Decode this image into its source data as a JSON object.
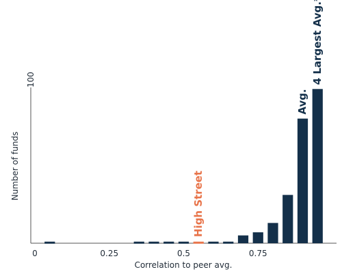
{
  "chart_data": {
    "type": "histogram",
    "x_label": "Correlation to peer avg.",
    "y_label": "Number of funds",
    "bins": [
      0.025,
      0.075,
      0.125,
      0.175,
      0.225,
      0.275,
      0.325,
      0.375,
      0.425,
      0.475,
      0.525,
      0.575,
      0.625,
      0.675,
      0.725,
      0.775,
      0.825,
      0.875,
      0.925,
      0.975
    ],
    "values": [
      1,
      0,
      0,
      0,
      0,
      0,
      1,
      1,
      1,
      1,
      1,
      1,
      1,
      5,
      7,
      13,
      31,
      80,
      99
    ],
    "colors": [
      "#14304a",
      "#14304a",
      "#14304a",
      "#14304a",
      "#14304a",
      "#14304a",
      "#14304a",
      "#14304a",
      "#14304a",
      "#14304a",
      "#e8744a",
      "#14304a",
      "#14304a",
      "#14304a",
      "#14304a",
      "#14304a",
      "#14304a",
      "#14304a",
      "#14304a"
    ],
    "xlim": [
      0,
      1
    ],
    "ylim": [
      0,
      100
    ],
    "xticks": [
      0,
      0.25,
      0.5,
      0.75
    ],
    "yticks": [
      100
    ],
    "annotations": [
      {
        "text": "High Street",
        "x": 0.55,
        "color": "#e8744a"
      },
      {
        "text": "Avg.",
        "x": 0.9,
        "color": "#14304a"
      },
      {
        "text": "4 Largest Avg.*",
        "x": 0.95,
        "color": "#14304a"
      }
    ]
  }
}
